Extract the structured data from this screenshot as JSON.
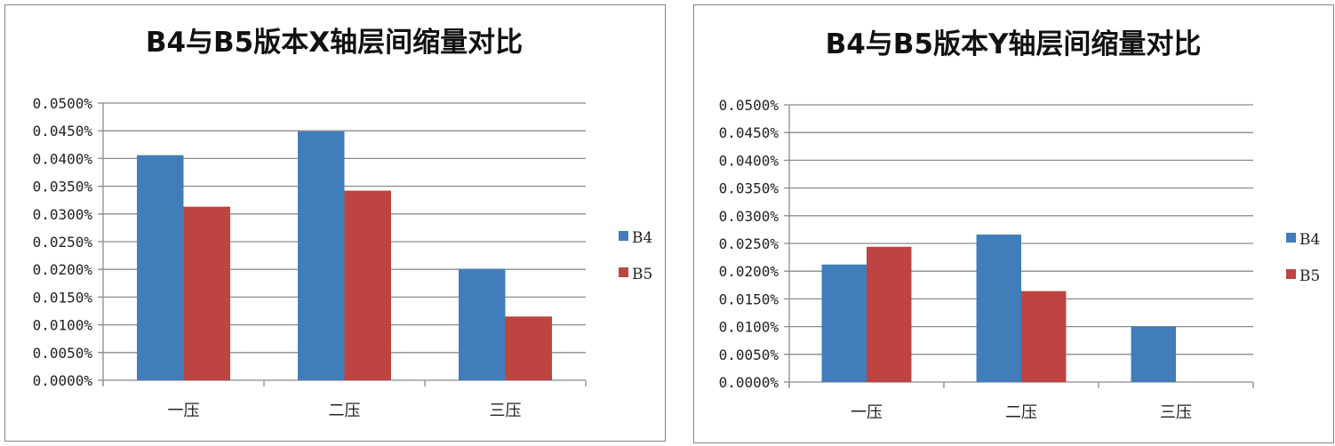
{
  "colors": {
    "B4": "#417dba",
    "B5": "#be4441",
    "grid": "#8c8c8c"
  },
  "chart_data": [
    {
      "type": "bar",
      "title": "B4与B5版本X轴层间缩量对比",
      "categories": [
        "一压",
        "二压",
        "三压"
      ],
      "series": [
        {
          "name": "B4",
          "values": [
            0.0406,
            0.0449,
            0.0201
          ]
        },
        {
          "name": "B5",
          "values": [
            0.0313,
            0.0342,
            0.0115
          ]
        }
      ],
      "unit": "%",
      "ylim": [
        0,
        0.05
      ],
      "yticks": [
        "0.0000%",
        "0.0050%",
        "0.0100%",
        "0.0150%",
        "0.0200%",
        "0.0250%",
        "0.0300%",
        "0.0350%",
        "0.0400%",
        "0.0450%",
        "0.0500%"
      ],
      "grid": true,
      "legend": "right"
    },
    {
      "type": "bar",
      "title": "B4与B5版本Y轴层间缩量对比",
      "categories": [
        "一压",
        "二压",
        "三压"
      ],
      "series": [
        {
          "name": "B4",
          "values": [
            0.0212,
            0.0266,
            0.01
          ]
        },
        {
          "name": "B5",
          "values": [
            0.0244,
            0.0164,
            0
          ]
        }
      ],
      "unit": "%",
      "ylim": [
        0,
        0.05
      ],
      "yticks": [
        "0.0000%",
        "0.0050%",
        "0.0100%",
        "0.0150%",
        "0.0200%",
        "0.0250%",
        "0.0300%",
        "0.0350%",
        "0.0400%",
        "0.0450%",
        "0.0500%"
      ],
      "grid": true,
      "legend": "right"
    }
  ]
}
